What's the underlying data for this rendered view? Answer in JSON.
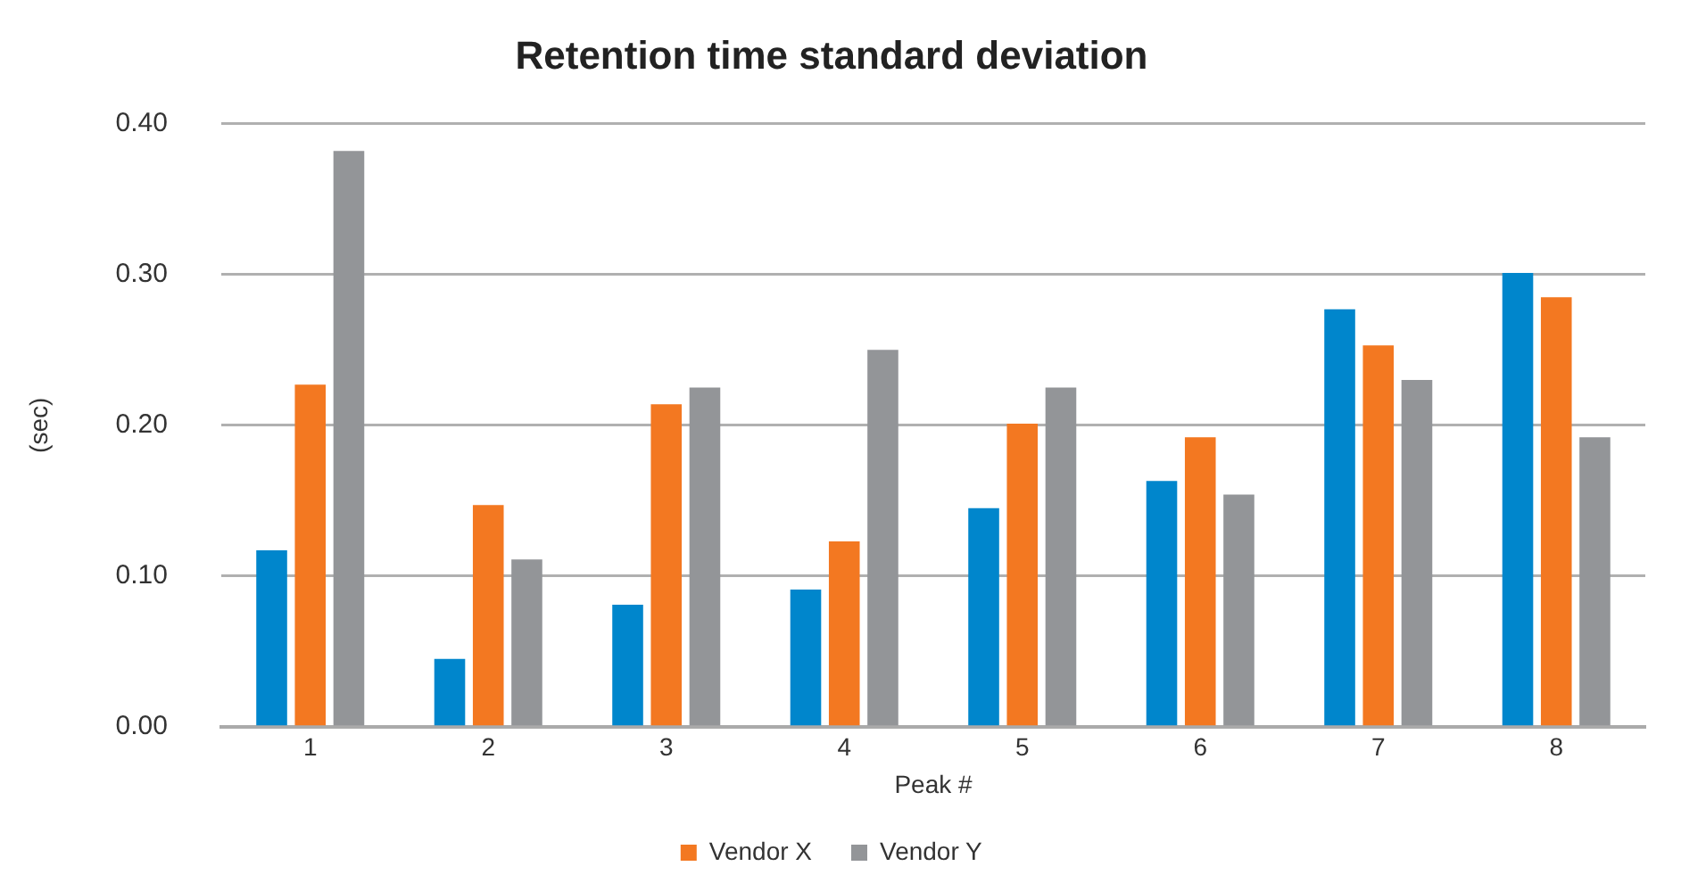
{
  "chart_data": {
    "type": "bar",
    "title": "Retention time standard deviation",
    "xlabel": "Peak #",
    "ylabel": "(sec)",
    "categories": [
      "1",
      "2",
      "3",
      "4",
      "5",
      "6",
      "7",
      "8"
    ],
    "series": [
      {
        "color": "#0086cc",
        "values": [
          0.117,
          0.045,
          0.081,
          0.091,
          0.145,
          0.163,
          0.277,
          0.301
        ]
      },
      {
        "name": "Vendor X",
        "color": "#f37821",
        "values": [
          0.227,
          0.147,
          0.214,
          0.123,
          0.201,
          0.192,
          0.253,
          0.285
        ]
      },
      {
        "name": "Vendor Y",
        "color": "#939598",
        "values": [
          0.382,
          0.111,
          0.225,
          0.25,
          0.225,
          0.154,
          0.23,
          0.192
        ]
      }
    ],
    "ylim": [
      0,
      0.4
    ],
    "yticks": [
      {
        "value": 0,
        "label": "0.00"
      },
      {
        "value": 0.1,
        "label": "0.10"
      },
      {
        "value": 0.2,
        "label": "0.20"
      },
      {
        "value": 0.3,
        "label": "0.30"
      },
      {
        "value": 0.4,
        "label": "0.40"
      }
    ],
    "grid": "y",
    "legend": "bottom"
  }
}
